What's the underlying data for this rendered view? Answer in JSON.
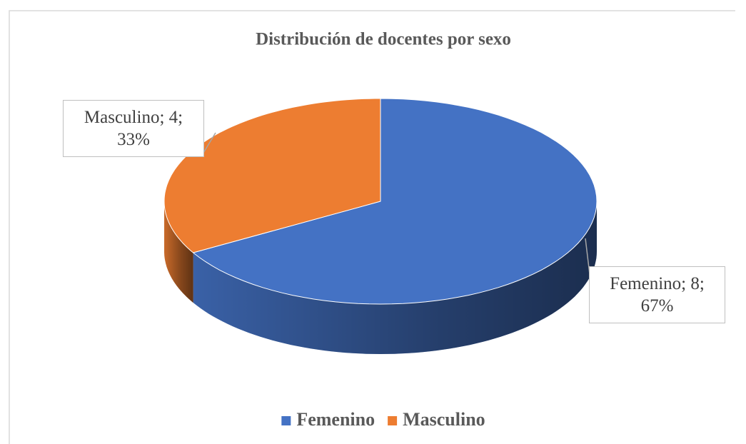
{
  "chart_data": {
    "type": "pie",
    "title": "Distribución de docentes por sexo",
    "categories": [
      "Femenino",
      "Masculino"
    ],
    "values": [
      8,
      4
    ],
    "value_labels": [
      "Femenino; 8; 67%",
      "Masculino; 4; 33%"
    ],
    "colors": [
      "#4472c4",
      "#ed7d31"
    ],
    "legend": "bottom",
    "three_d": true
  }
}
